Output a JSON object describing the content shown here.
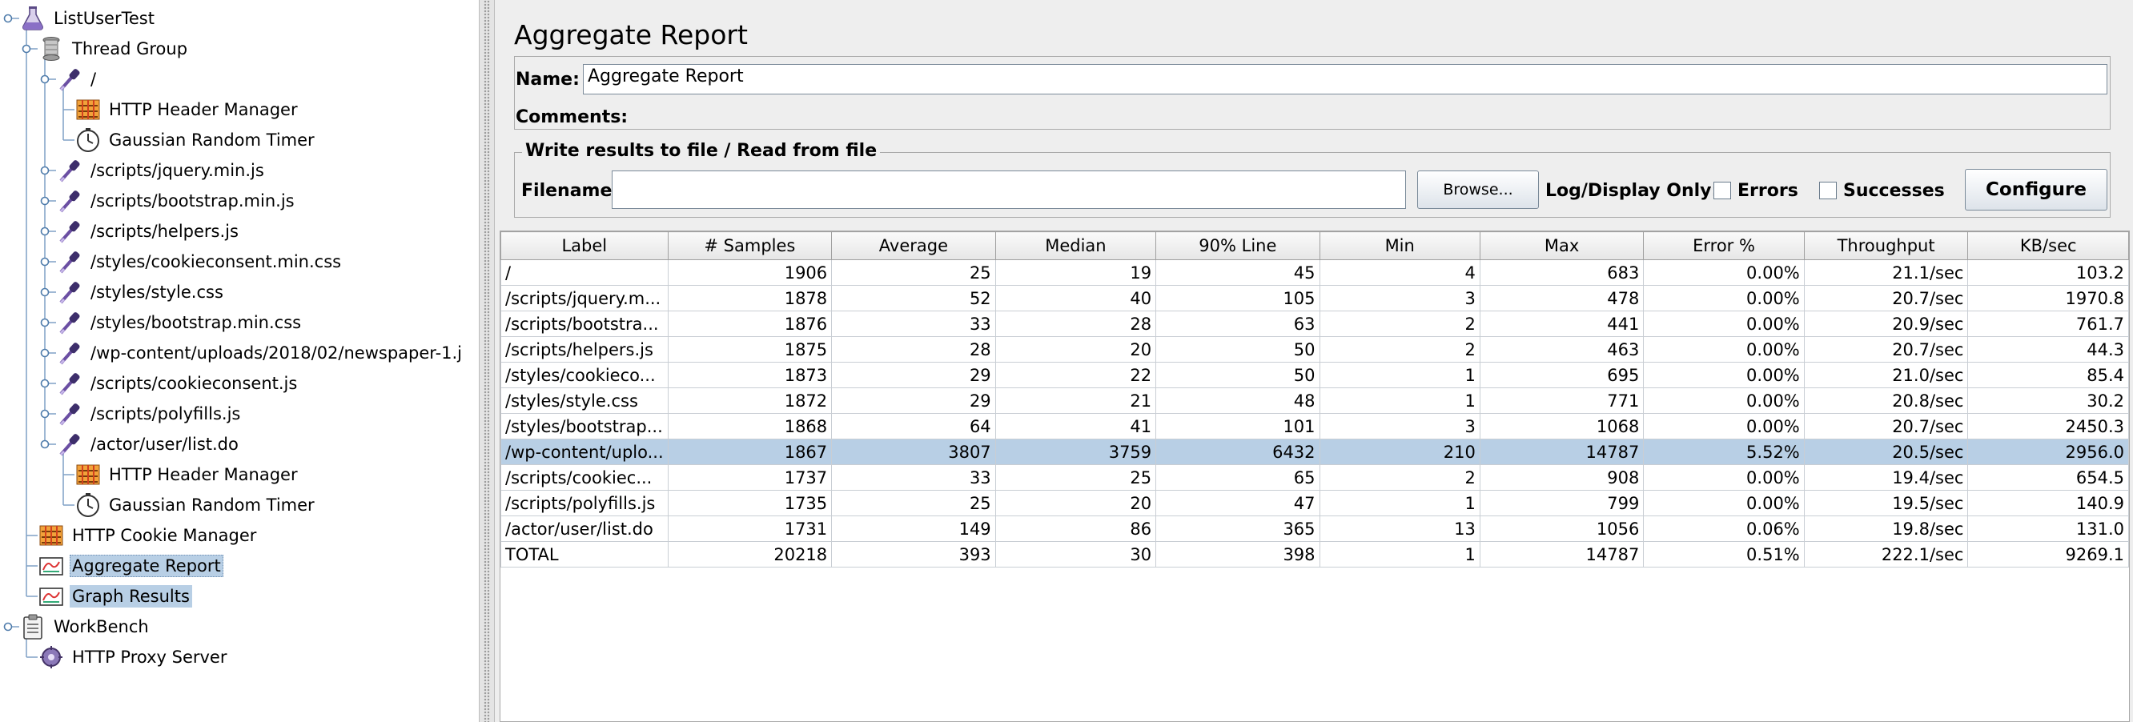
{
  "tree": {
    "nodes": [
      {
        "label": "ListUserTest",
        "icon": "flask-icon"
      },
      {
        "label": "Thread Group",
        "icon": "spool-icon"
      },
      {
        "label": "/",
        "icon": "pipette-icon"
      },
      {
        "label": "HTTP Header Manager",
        "icon": "header-manager-icon"
      },
      {
        "label": "Gaussian Random Timer",
        "icon": "timer-icon"
      },
      {
        "label": "/scripts/jquery.min.js",
        "icon": "pipette-icon"
      },
      {
        "label": "/scripts/bootstrap.min.js",
        "icon": "pipette-icon"
      },
      {
        "label": "/scripts/helpers.js",
        "icon": "pipette-icon"
      },
      {
        "label": "/styles/cookieconsent.min.css",
        "icon": "pipette-icon"
      },
      {
        "label": "/styles/style.css",
        "icon": "pipette-icon"
      },
      {
        "label": "/styles/bootstrap.min.css",
        "icon": "pipette-icon"
      },
      {
        "label": "/wp-content/uploads/2018/02/newspaper-1.j",
        "icon": "pipette-icon"
      },
      {
        "label": "/scripts/cookieconsent.js",
        "icon": "pipette-icon"
      },
      {
        "label": "/scripts/polyfills.js",
        "icon": "pipette-icon"
      },
      {
        "label": "/actor/user/list.do",
        "icon": "pipette-icon"
      },
      {
        "label": "HTTP Header Manager",
        "icon": "header-manager-icon"
      },
      {
        "label": "Gaussian Random Timer",
        "icon": "timer-icon"
      },
      {
        "label": "HTTP Cookie Manager",
        "icon": "header-manager-icon"
      },
      {
        "label": "Aggregate Report",
        "icon": "report-icon"
      },
      {
        "label": "Graph Results",
        "icon": "report-icon"
      },
      {
        "label": "WorkBench",
        "icon": "clipboard-icon"
      },
      {
        "label": "HTTP Proxy Server",
        "icon": "proxy-icon"
      }
    ]
  },
  "panel": {
    "title": "Aggregate Report",
    "name_label": "Name:",
    "name_value": "Aggregate Report",
    "comments_label": "Comments:",
    "file_legend": "Write results to file / Read from file",
    "filename_label": "Filename",
    "filename_value": "",
    "browse_label": "Browse...",
    "log_display_label": "Log/Display Only:",
    "errors_label": "Errors",
    "successes_label": "Successes",
    "configure_label": "Configure"
  },
  "table": {
    "headers": [
      "Label",
      "# Samples",
      "Average",
      "Median",
      "90% Line",
      "Min",
      "Max",
      "Error %",
      "Throughput",
      "KB/sec"
    ],
    "rows": [
      [
        "/",
        "1906",
        "25",
        "19",
        "45",
        "4",
        "683",
        "0.00%",
        "21.1/sec",
        "103.2"
      ],
      [
        "/scripts/jquery.m...",
        "1878",
        "52",
        "40",
        "105",
        "3",
        "478",
        "0.00%",
        "20.7/sec",
        "1970.8"
      ],
      [
        "/scripts/bootstra...",
        "1876",
        "33",
        "28",
        "63",
        "2",
        "441",
        "0.00%",
        "20.9/sec",
        "761.7"
      ],
      [
        "/scripts/helpers.js",
        "1875",
        "28",
        "20",
        "50",
        "2",
        "463",
        "0.00%",
        "20.7/sec",
        "44.3"
      ],
      [
        "/styles/cookieco...",
        "1873",
        "29",
        "22",
        "50",
        "1",
        "695",
        "0.00%",
        "21.0/sec",
        "85.4"
      ],
      [
        "/styles/style.css",
        "1872",
        "29",
        "21",
        "48",
        "1",
        "771",
        "0.00%",
        "20.8/sec",
        "30.2"
      ],
      [
        "/styles/bootstrap...",
        "1868",
        "64",
        "41",
        "101",
        "3",
        "1068",
        "0.00%",
        "20.7/sec",
        "2450.3"
      ],
      [
        "/wp-content/uplo...",
        "1867",
        "3807",
        "3759",
        "6432",
        "210",
        "14787",
        "5.52%",
        "20.5/sec",
        "2956.0"
      ],
      [
        "/scripts/cookiec...",
        "1737",
        "33",
        "25",
        "65",
        "2",
        "908",
        "0.00%",
        "19.4/sec",
        "654.5"
      ],
      [
        "/scripts/polyfills.js",
        "1735",
        "25",
        "20",
        "47",
        "1",
        "799",
        "0.00%",
        "19.5/sec",
        "140.9"
      ],
      [
        "/actor/user/list.do",
        "1731",
        "149",
        "86",
        "365",
        "13",
        "1056",
        "0.06%",
        "19.8/sec",
        "131.0"
      ],
      [
        "TOTAL",
        "20218",
        "393",
        "30",
        "398",
        "1",
        "14787",
        "0.51%",
        "222.1/sec",
        "9269.1"
      ]
    ],
    "highlighted_row": 7
  },
  "colors": {
    "selection": "#b8cfe5",
    "panel_bg": "#eeeeee",
    "tree_line": "#7fa1c6"
  }
}
